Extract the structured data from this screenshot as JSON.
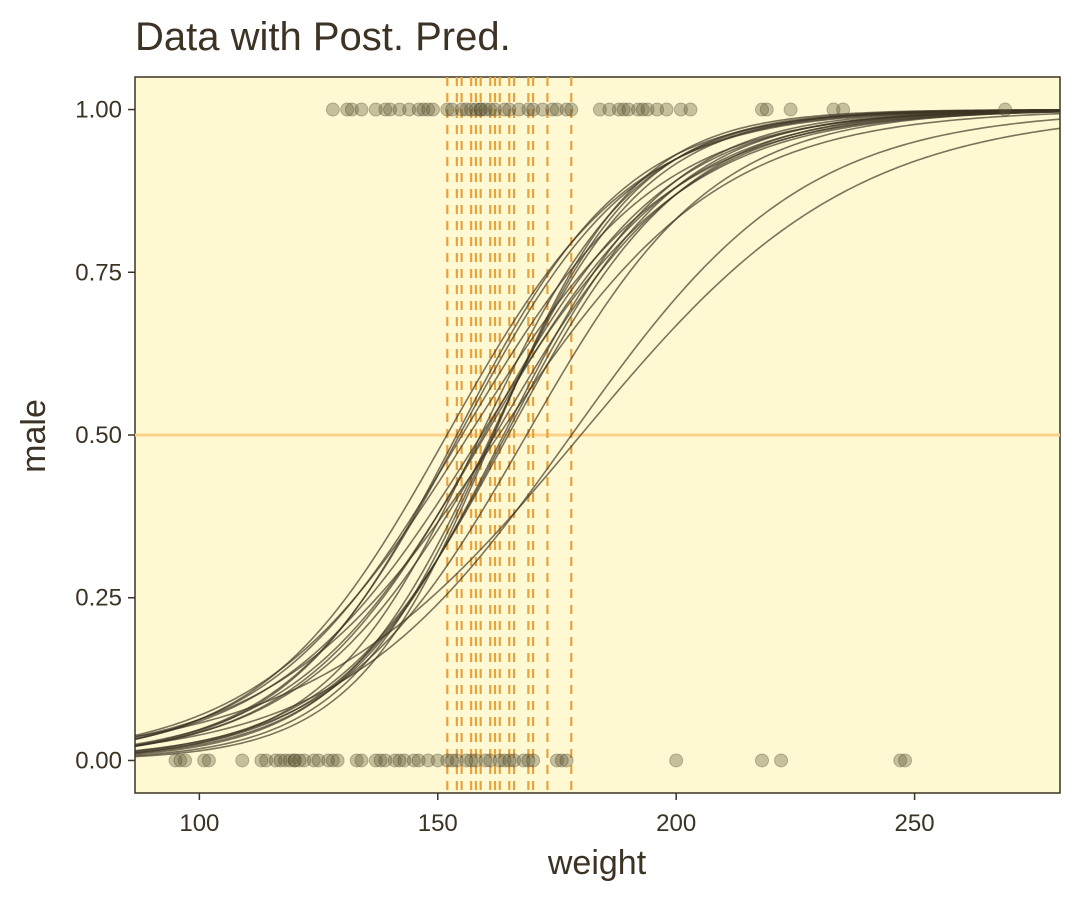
{
  "chart_data": {
    "type": "line",
    "title": "Data with Post. Pred.",
    "xlabel": "weight",
    "ylabel": "male",
    "xlim": [
      86.5,
      280.5
    ],
    "ylim": [
      -0.05,
      1.05
    ],
    "x_ticks": [
      100,
      150,
      200,
      250
    ],
    "x_tick_labels": [
      "100",
      "150",
      "200",
      "250"
    ],
    "y_ticks": [
      0,
      0.25,
      0.5,
      0.75,
      1
    ],
    "y_tick_labels": [
      "0.00",
      "0.25",
      "0.50",
      "0.75",
      "1.00"
    ],
    "grid": false,
    "colors": {
      "panel": "#fef9d2",
      "curves": "#3d3324",
      "points": "#5f5a3a",
      "decision_lines": "#e8a23c",
      "reference_line": "#fbd18a"
    },
    "reference_line_y": 0.5,
    "posterior_curves": [
      {
        "beta0": -7.4,
        "beta1": 0.0465
      },
      {
        "beta0": -8.7,
        "beta1": 0.0565
      },
      {
        "beta0": -7.9,
        "beta1": 0.052
      },
      {
        "beta0": -8.0,
        "beta1": 0.05
      },
      {
        "beta0": -8.3,
        "beta1": 0.052
      },
      {
        "beta0": -9.2,
        "beta1": 0.056
      },
      {
        "beta0": -10.0,
        "beta1": 0.062
      },
      {
        "beta0": -7.2,
        "beta1": 0.046
      },
      {
        "beta0": -8.5,
        "beta1": 0.055
      },
      {
        "beta0": -9.5,
        "beta1": 0.058
      },
      {
        "beta0": -7.6,
        "beta1": 0.049
      },
      {
        "beta0": -8.1,
        "beta1": 0.05
      },
      {
        "beta0": -10.5,
        "beta1": 0.065
      },
      {
        "beta0": -8.9,
        "beta1": 0.054
      },
      {
        "beta0": -7.0,
        "beta1": 0.043
      },
      {
        "beta0": -9.7,
        "beta1": 0.061
      },
      {
        "beta0": -6.3,
        "beta1": 0.035
      },
      {
        "beta0": -7.3,
        "beta1": 0.041
      },
      {
        "beta0": -8.6,
        "beta1": 0.051
      },
      {
        "beta0": -11.0,
        "beta1": 0.068
      }
    ],
    "decision_boundaries": [
      152,
      154,
      155,
      157,
      158,
      159,
      161,
      162,
      163,
      165,
      166,
      169,
      170,
      173,
      178
    ],
    "points_male": [
      128,
      131,
      132,
      134,
      137,
      139,
      140,
      142,
      144,
      146,
      147,
      148,
      149,
      152,
      153,
      155,
      156,
      157,
      158,
      159,
      159,
      160,
      161,
      162,
      164,
      165,
      167,
      169,
      170,
      172,
      174,
      175,
      177,
      178,
      184,
      186,
      188,
      189,
      190,
      192,
      193,
      194,
      196,
      198,
      201,
      203,
      218,
      219,
      224,
      233,
      235,
      269
    ],
    "points_female": [
      95,
      96,
      97,
      101,
      102,
      109,
      113,
      114,
      116,
      117,
      118,
      119,
      120,
      120,
      121,
      122,
      124,
      125,
      127,
      128,
      129,
      133,
      134,
      137,
      138,
      139,
      141,
      142,
      143,
      145,
      146,
      148,
      150,
      152,
      153,
      154,
      156,
      157,
      158,
      160,
      161,
      163,
      164,
      165,
      166,
      168,
      169,
      170,
      175,
      176,
      177,
      200,
      218,
      222,
      247,
      248
    ]
  }
}
